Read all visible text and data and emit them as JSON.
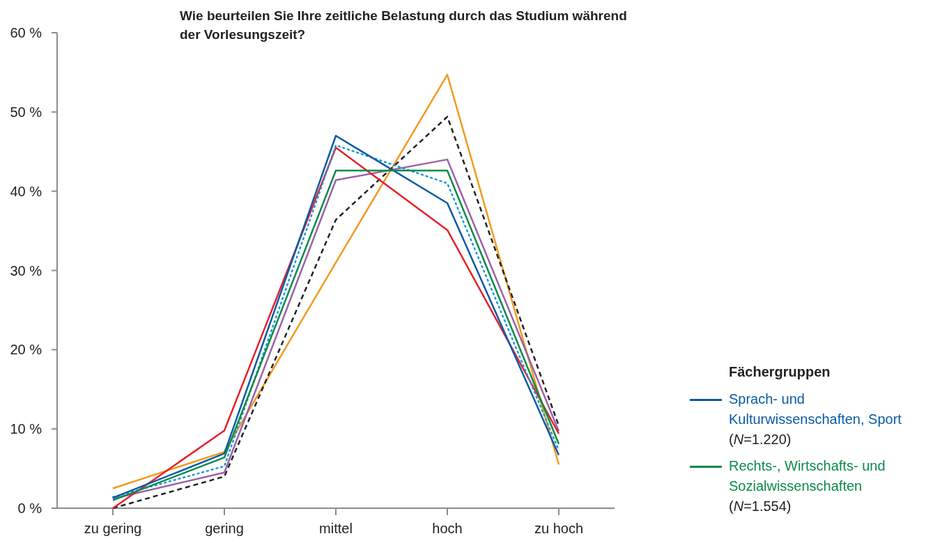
{
  "chart_data": {
    "type": "line",
    "title": "Wie beurteilen Sie Ihre zeitliche Belastung durch das Studium während der Vorlesungszeit?",
    "legend_title": "Fächergruppen",
    "legend": "right",
    "grid": false,
    "categories": [
      "zu gering",
      "gering",
      "mittel",
      "hoch",
      "zu hoch"
    ],
    "ylim": [
      0,
      60
    ],
    "yticks": [
      {
        "value": 0,
        "label": "0 %"
      },
      {
        "value": 10,
        "label": "10 %"
      },
      {
        "value": 20,
        "label": "20 %"
      },
      {
        "value": 30,
        "label": "30 %"
      },
      {
        "value": 40,
        "label": "40 %"
      },
      {
        "value": 50,
        "label": "50 %"
      },
      {
        "value": 60,
        "label": "60 %"
      }
    ],
    "series": [
      {
        "color": "#f39a1e",
        "line_style": "solid",
        "values": [
          2.5,
          7.1,
          31.0,
          54.7,
          5.5
        ]
      },
      {
        "color": "#222222",
        "line_style": "dashed",
        "values": [
          0,
          4.0,
          36.4,
          49.4,
          10.4
        ]
      },
      {
        "color": "#9b62a8",
        "line_style": "solid",
        "values": [
          1.2,
          4.5,
          41.4,
          44.0,
          9.7
        ]
      },
      {
        "color": "#e8202a",
        "line_style": "solid",
        "values": [
          0,
          9.8,
          45.5,
          35.1,
          9.4
        ]
      },
      {
        "color": "#1a9ad8",
        "line_style": "dotted",
        "values": [
          1.4,
          5.3,
          45.8,
          41.0,
          7.3
        ]
      },
      {
        "name": "Sprach- und Kulturwissenschaften, Sport (N=1.220)",
        "color": "#0a5aa5",
        "line_style": "solid",
        "values": [
          1.3,
          6.9,
          47.0,
          38.5,
          6.7
        ]
      },
      {
        "name": "Rechts-, Wirtschafts- und Sozialwissenschaften (N=1.554)",
        "color": "#0a8a46",
        "line_style": "solid",
        "values": [
          1.0,
          6.4,
          42.6,
          42.6,
          8.1
        ]
      }
    ]
  }
}
